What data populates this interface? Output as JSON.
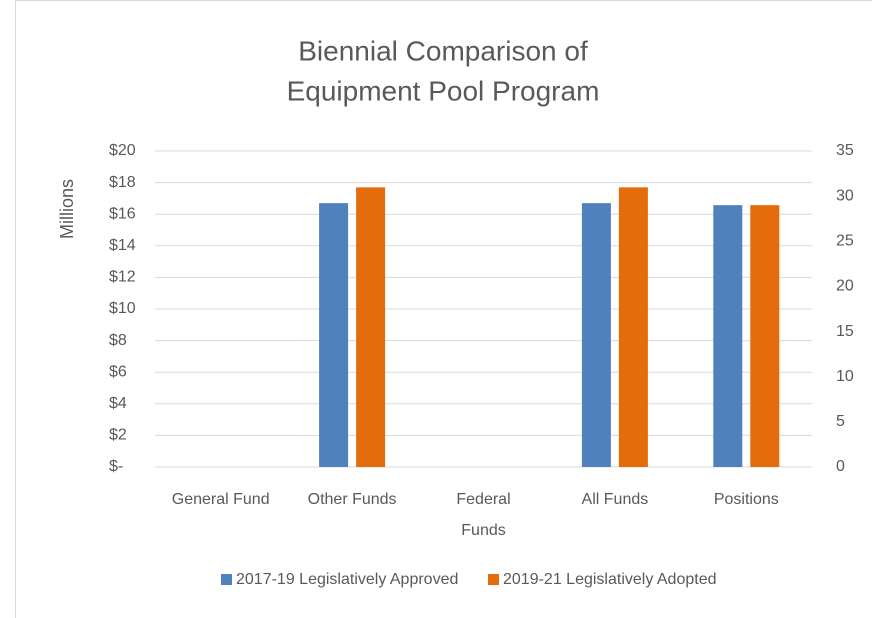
{
  "chart_data": {
    "type": "bar",
    "title": [
      "Biennial Comparison of",
      "Equipment Pool Program"
    ],
    "ylabel": "Millions",
    "categories": [
      "General Fund",
      "Other Funds",
      "Federal Funds",
      "All Funds",
      "Positions"
    ],
    "axes": [
      "y",
      "y",
      "y",
      "y",
      "y2"
    ],
    "series": [
      {
        "name": "2017-19 Legislatively Approved",
        "color": "#4F81BD",
        "values": [
          0,
          16.7,
          0,
          16.7,
          29
        ]
      },
      {
        "name": "2019-21 Legislatively Adopted",
        "color": "#E46C0A",
        "values": [
          0,
          17.7,
          0,
          17.7,
          29
        ]
      }
    ],
    "ylim": [
      0,
      20
    ],
    "yticks": [
      {
        "value": 0,
        "label": "$-"
      },
      {
        "value": 2,
        "label": "$2"
      },
      {
        "value": 4,
        "label": "$4"
      },
      {
        "value": 6,
        "label": "$6"
      },
      {
        "value": 8,
        "label": "$8"
      },
      {
        "value": 10,
        "label": "$10"
      },
      {
        "value": 12,
        "label": "$12"
      },
      {
        "value": 14,
        "label": "$14"
      },
      {
        "value": 16,
        "label": "$16"
      },
      {
        "value": 18,
        "label": "$18"
      },
      {
        "value": 20,
        "label": "$20"
      }
    ],
    "y2lim": [
      0,
      35
    ],
    "y2ticks": [
      0,
      5,
      10,
      15,
      20,
      25,
      30,
      35
    ],
    "grid": true,
    "legend": "bottom"
  }
}
